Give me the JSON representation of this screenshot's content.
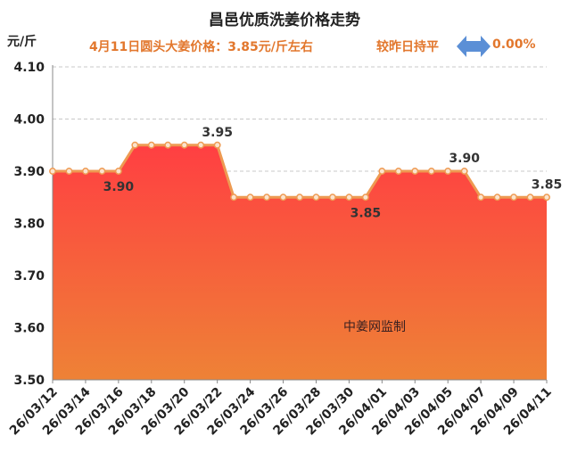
{
  "header": {
    "title": "昌邑优质洗姜价格走势",
    "price_text": "4月11日圆头大姜价格：3.85元/斤左右",
    "compare_text": "较昨日持平",
    "change_value": "0.00%",
    "unit_label": "元/斤",
    "watermark": "中姜网监制"
  },
  "colors": {
    "accent": "#e2772d",
    "arrow": "#5b8fd6",
    "fill_top": "#ff3f42",
    "fill_bottom": "#ee8236",
    "line": "#ee9a52"
  },
  "chart_data": {
    "type": "area",
    "title": "昌邑优质洗姜价格走势",
    "ylabel": "元/斤",
    "ylim": [
      3.5,
      4.1
    ],
    "yticks": [
      "3.50",
      "3.60",
      "3.70",
      "3.80",
      "3.90",
      "4.00",
      "4.10"
    ],
    "grid": true,
    "x": [
      "26/03/12",
      "26/03/13",
      "26/03/14",
      "26/03/15",
      "26/03/16",
      "26/03/17",
      "26/03/18",
      "26/03/19",
      "26/03/20",
      "26/03/21",
      "26/03/22",
      "26/03/23",
      "26/03/24",
      "26/03/25",
      "26/03/26",
      "26/03/27",
      "26/03/28",
      "26/03/29",
      "26/03/30",
      "26/03/31",
      "26/04/01",
      "26/04/02",
      "26/04/03",
      "26/04/04",
      "26/04/05",
      "26/04/06",
      "26/04/07",
      "26/04/08",
      "26/04/09",
      "26/04/10",
      "26/04/11"
    ],
    "xtick_labels": [
      "26/03/12",
      "26/03/14",
      "26/03/16",
      "26/03/18",
      "26/03/20",
      "26/03/22",
      "26/03/24",
      "26/03/26",
      "26/03/28",
      "26/03/30",
      "26/04/01",
      "26/04/03",
      "26/04/05",
      "26/04/07",
      "26/04/09",
      "26/04/11"
    ],
    "values": [
      3.9,
      3.9,
      3.9,
      3.9,
      3.9,
      3.95,
      3.95,
      3.95,
      3.95,
      3.95,
      3.95,
      3.85,
      3.85,
      3.85,
      3.85,
      3.85,
      3.85,
      3.85,
      3.85,
      3.85,
      3.9,
      3.9,
      3.9,
      3.9,
      3.9,
      3.9,
      3.85,
      3.85,
      3.85,
      3.85,
      3.85
    ],
    "data_labels": [
      {
        "index": 4,
        "text": "3.90",
        "side": "below"
      },
      {
        "index": 10,
        "text": "3.95",
        "side": "above"
      },
      {
        "index": 19,
        "text": "3.85",
        "side": "below"
      },
      {
        "index": 25,
        "text": "3.90",
        "side": "above"
      },
      {
        "index": 30,
        "text": "3.85",
        "side": "above"
      }
    ]
  }
}
